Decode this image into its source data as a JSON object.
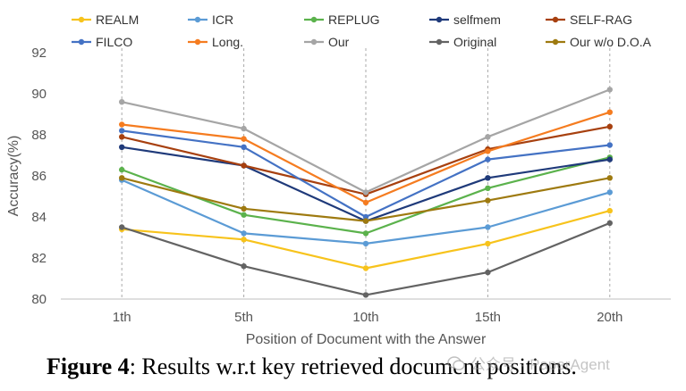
{
  "chart_data": {
    "type": "line",
    "title": "",
    "xlabel": "Position of Document with the Answer",
    "ylabel": "Accuracy(%)",
    "categories": [
      "1th",
      "5th",
      "10th",
      "15th",
      "20th"
    ],
    "ylim": [
      80,
      92
    ],
    "yticks": [
      80,
      82,
      84,
      86,
      88,
      90,
      92
    ],
    "grid": "vertical dashed at categories",
    "legend_position": "top",
    "series": [
      {
        "name": "REALM",
        "color": "#F7C31C",
        "values": [
          83.4,
          82.9,
          81.5,
          82.7,
          84.3
        ]
      },
      {
        "name": "ICR",
        "color": "#5B9BD5",
        "values": [
          85.8,
          83.2,
          82.7,
          83.5,
          85.2
        ]
      },
      {
        "name": "REPLUG",
        "color": "#5BB24C",
        "values": [
          86.3,
          84.1,
          83.2,
          85.4,
          86.9
        ]
      },
      {
        "name": "selfmem",
        "color": "#1F3A7A",
        "values": [
          87.4,
          86.5,
          83.8,
          85.9,
          86.8
        ]
      },
      {
        "name": "SELF-RAG",
        "color": "#A7400F",
        "values": [
          87.9,
          86.5,
          85.1,
          87.3,
          88.4
        ]
      },
      {
        "name": "FILCO",
        "color": "#4472C4",
        "values": [
          88.2,
          87.4,
          84.0,
          86.8,
          87.5
        ]
      },
      {
        "name": "Long.",
        "color": "#F57C20",
        "values": [
          88.5,
          87.8,
          84.7,
          87.2,
          89.1
        ]
      },
      {
        "name": "Our",
        "color": "#A5A5A5",
        "values": [
          89.6,
          88.3,
          85.2,
          87.9,
          90.2
        ]
      },
      {
        "name": "Original",
        "color": "#636363",
        "values": [
          83.5,
          81.6,
          80.2,
          81.3,
          83.7
        ]
      },
      {
        "name": "Our w/o D.O.A",
        "color": "#9E7A10",
        "values": [
          85.9,
          84.4,
          83.8,
          84.8,
          85.9
        ]
      }
    ]
  },
  "caption": {
    "label": "Figure 4",
    "text": ": Results w.r.t key retrieved document positions."
  },
  "watermark": {
    "text": "公众号 · PaperAgent"
  }
}
